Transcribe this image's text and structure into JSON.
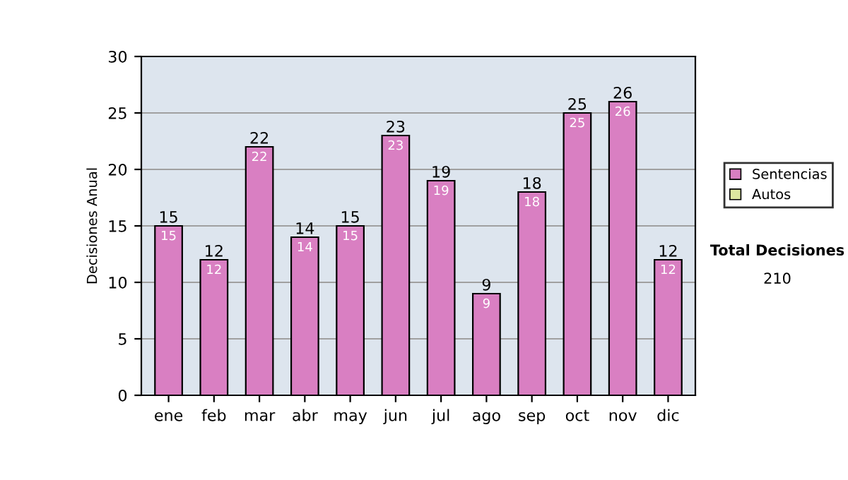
{
  "chart_data": {
    "type": "bar",
    "ylabel": "Decisiones Anual",
    "categories": [
      "ene",
      "feb",
      "mar",
      "abr",
      "may",
      "jun",
      "jul",
      "ago",
      "sep",
      "oct",
      "nov",
      "dic"
    ],
    "series": [
      {
        "name": "Sentencias",
        "color": "#d97fc2",
        "values": [
          15,
          12,
          22,
          14,
          15,
          23,
          19,
          9,
          18,
          25,
          26,
          12
        ]
      },
      {
        "name": "Autos",
        "color": "#dde8a0",
        "values": [
          null,
          null,
          null,
          null,
          null,
          null,
          null,
          null,
          null,
          null,
          null,
          null
        ]
      }
    ],
    "stacked": true,
    "totals": [
      "15",
      "12",
      "22",
      "14",
      "15",
      "23",
      "19",
      "9",
      "18",
      "25",
      "26",
      "12"
    ],
    "ylim": [
      0,
      30
    ],
    "yticks": [
      0,
      5,
      10,
      15,
      20,
      25,
      30
    ],
    "grid": "y",
    "legend": "right",
    "data_labels": true,
    "annotations": [
      "Total Decisiones",
      "210"
    ]
  }
}
